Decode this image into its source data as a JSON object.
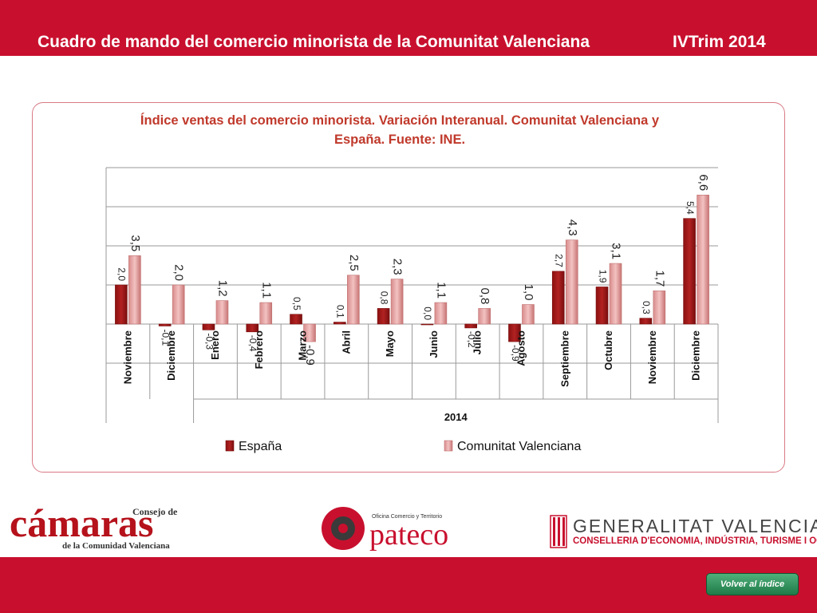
{
  "header": {
    "title": "Cuadro de mando del comercio minorista de la Comunitat Valenciana",
    "period": "IVTrim 2014"
  },
  "footer": {
    "back_button": "Volver al índice",
    "logo_camaras_top": "Consejo de",
    "logo_camaras_main": "cámaras",
    "logo_camaras_sub": "de la Comunidad Valenciana",
    "logo_pateco_small": "Oficina Comercio y Territorio",
    "logo_pateco_main": "pateco",
    "logo_gv_main": "GENERALITAT VALENCIANA",
    "logo_gv_sub": "CONSELLERIA D'ECONOMIA, INDÚSTRIA, TURISME I OCUPACIÓ"
  },
  "colors": {
    "brand_red": "#c8102e",
    "espana": "#b22222",
    "cv": "#e8a0a0"
  },
  "chart_data": {
    "type": "bar",
    "title": "Índice ventas del comercio minorista. Variación Interanual. Comunitat Valenciana y España. Fuente: INE.",
    "categories": [
      "Noviembre",
      "Diciembre",
      "Enero",
      "Febrero",
      "Marzo",
      "Abril",
      "Mayo",
      "Junio",
      "Julio",
      "Agosto",
      "Septiembre",
      "Octubre",
      "Noviembre",
      "Diciembre"
    ],
    "group_label": "2014",
    "ylim": [
      -1,
      8
    ],
    "gridlines": true,
    "legend_position": "bottom",
    "series": [
      {
        "name": "España",
        "values": [
          2.0,
          -0.1,
          -0.3,
          -0.4,
          0.5,
          0.1,
          0.8,
          0.0,
          -0.2,
          -0.9,
          2.7,
          1.9,
          0.3,
          5.4
        ],
        "labels": [
          "2,0",
          "-0,1",
          "-0,3",
          "-0,4",
          "0,5",
          "0,1",
          "0,8",
          "0,0",
          "-0,2",
          "-0,9",
          "2,7",
          "1,9",
          "0,3",
          "5,4"
        ]
      },
      {
        "name": "Comunitat Valenciana",
        "values": [
          3.5,
          2.0,
          1.2,
          1.1,
          -0.9,
          2.5,
          2.3,
          1.1,
          0.8,
          1.0,
          4.3,
          3.1,
          1.7,
          6.6
        ],
        "labels": [
          "3,5",
          "2,0",
          "1,2",
          "1,1",
          "-0,9",
          "2,5",
          "2,3",
          "1,1",
          "0,8",
          "1,0",
          "4,3",
          "3,1",
          "1,7",
          "6,6"
        ]
      }
    ]
  }
}
